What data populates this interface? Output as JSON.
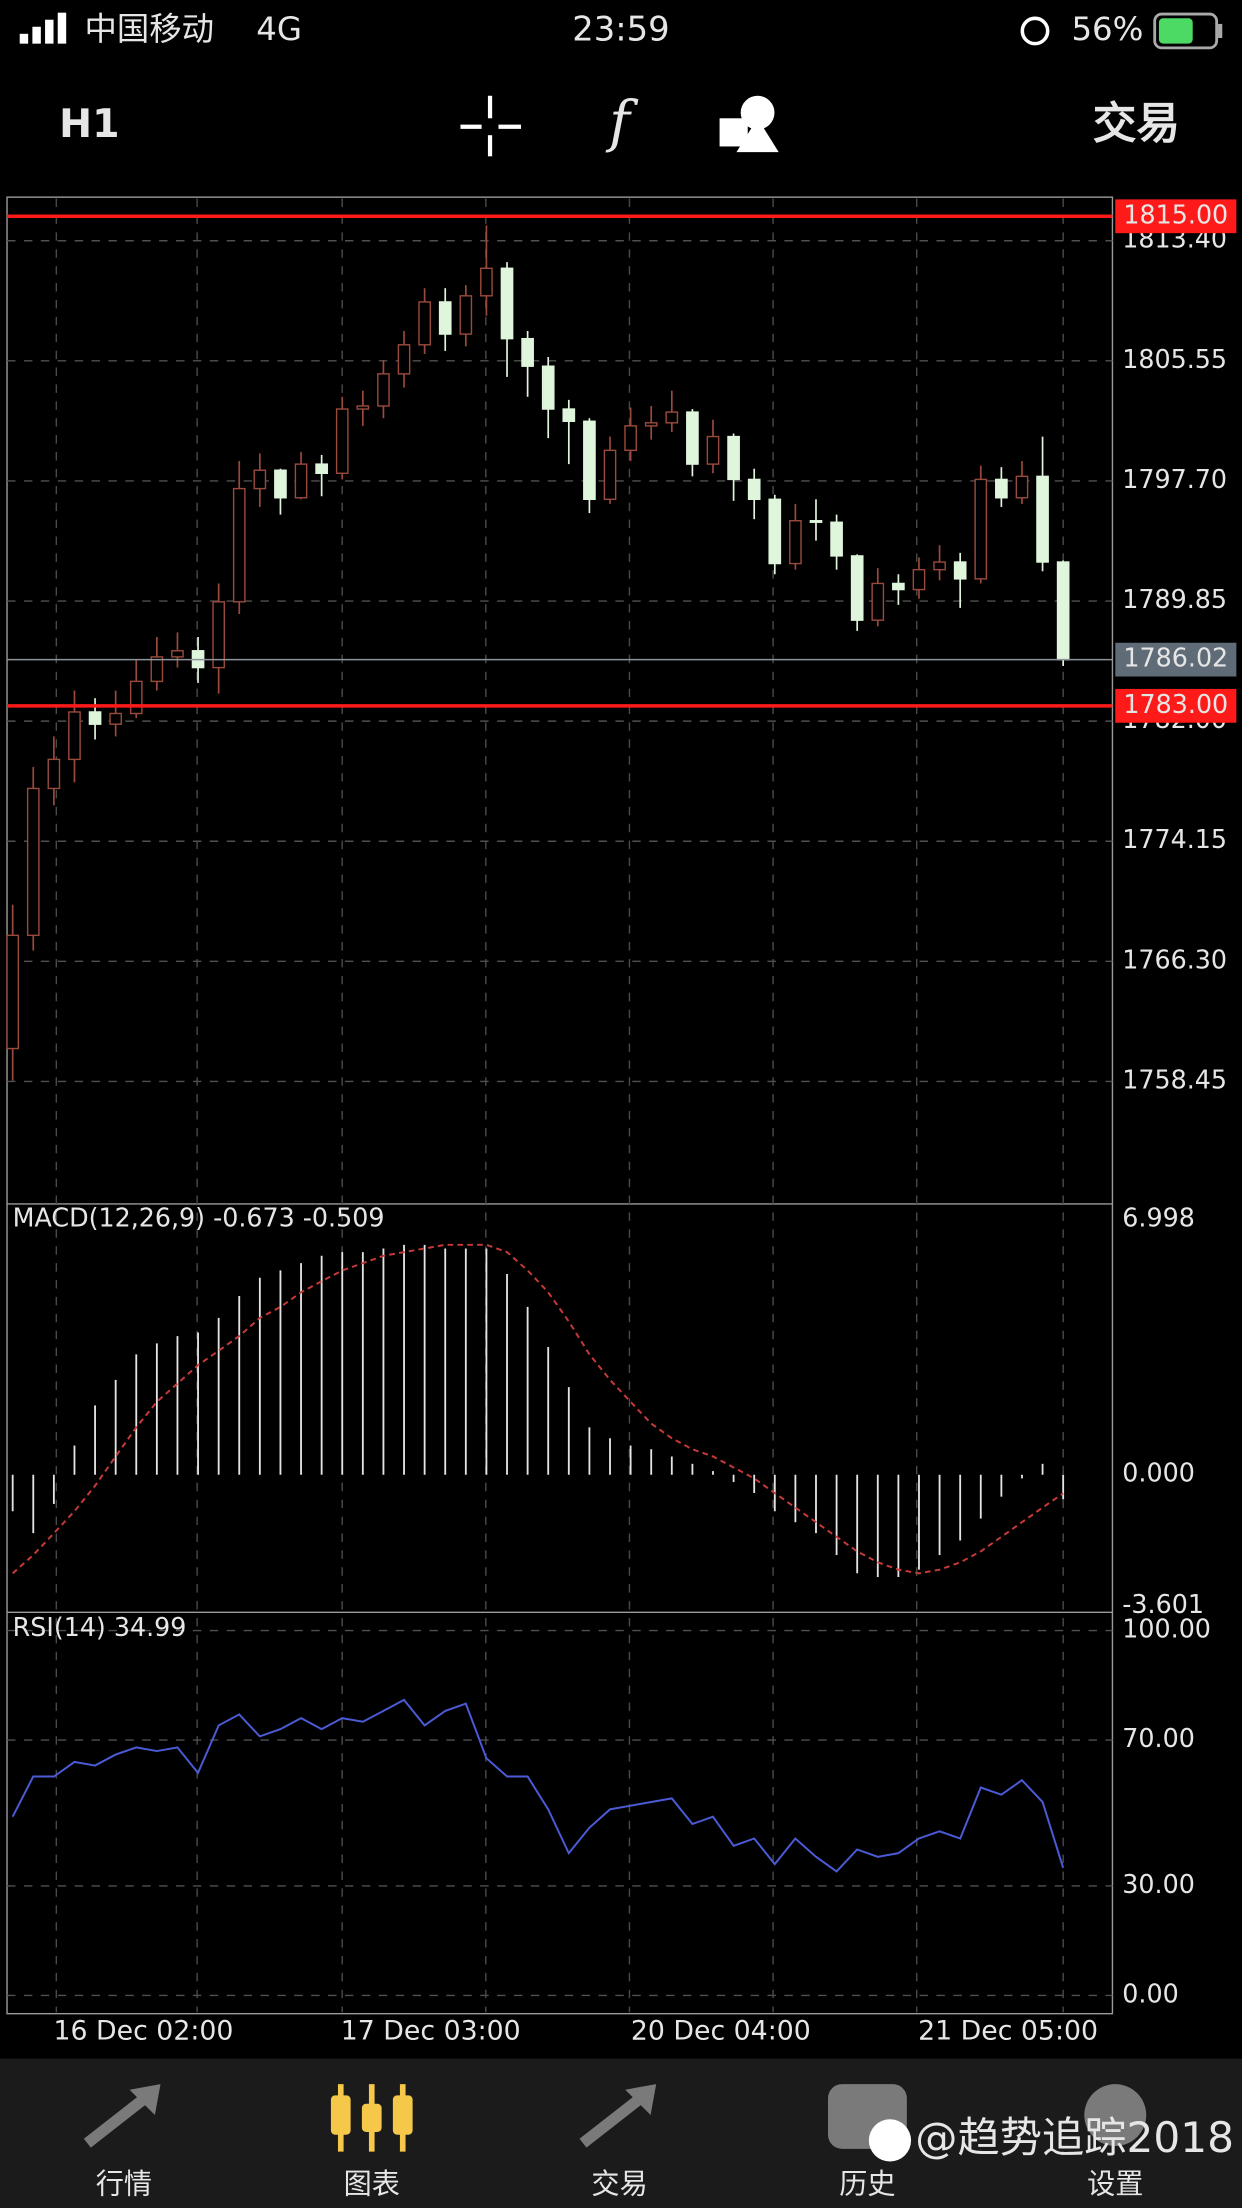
{
  "status_bar": {
    "carrier": "中国移动",
    "network": "4G",
    "time": "23:59",
    "battery": "56%"
  },
  "toolbar": {
    "timeframe": "H1",
    "trade": "交易"
  },
  "chart_data": [
    {
      "type": "candlestick",
      "up_color": "#9a4a3c",
      "down_color": "#dff5dc",
      "grid": true,
      "open": [
        1760.6,
        1768,
        1777.6,
        1779.5,
        1782.6,
        1781.8,
        1782.5,
        1784.6,
        1786.2,
        1786.6,
        1785.5,
        1789.8,
        1797.2,
        1798.4,
        1796.6,
        1798.8,
        1798.2,
        1802.4,
        1802.6,
        1804.7,
        1806.6,
        1809.4,
        1807.3,
        1809.8,
        1811.6,
        1807,
        1805.2,
        1802.4,
        1801.6,
        1796.5,
        1799.7,
        1801.3,
        1801.5,
        1802.2,
        1798.8,
        1800.6,
        1797.8,
        1796.5,
        1792.3,
        1795.1,
        1795,
        1792.8,
        1788.6,
        1791,
        1790.6,
        1791.9,
        1792.4,
        1791.3,
        1797.8,
        1796.6,
        1798,
        1792.4
      ],
      "high": [
        1770,
        1779,
        1781,
        1784,
        1783.5,
        1784,
        1786,
        1787.5,
        1787.8,
        1787.5,
        1791,
        1799,
        1799.5,
        1798.5,
        1799.6,
        1799.4,
        1803.2,
        1803.6,
        1805.6,
        1807.5,
        1810.3,
        1810.3,
        1810.5,
        1814.4,
        1812,
        1807.5,
        1805.8,
        1803,
        1801.8,
        1800.6,
        1802.5,
        1802.6,
        1803.6,
        1802.4,
        1801.7,
        1800.8,
        1798.5,
        1796.8,
        1796.2,
        1796.5,
        1795.5,
        1792.9,
        1792,
        1791.6,
        1792.7,
        1793.5,
        1793,
        1798.7,
        1798.6,
        1799,
        1800.6,
        1792.5
      ],
      "low": [
        1758.5,
        1767,
        1776.5,
        1778,
        1780.8,
        1781,
        1782.2,
        1784,
        1785.5,
        1784.5,
        1783.8,
        1789,
        1796,
        1795.5,
        1796.5,
        1796.7,
        1797.8,
        1801.3,
        1801.8,
        1803.8,
        1806,
        1806.2,
        1806.5,
        1808.5,
        1804.5,
        1803.2,
        1800.5,
        1798.8,
        1795.6,
        1796.2,
        1799,
        1800.4,
        1800.9,
        1798,
        1798.2,
        1796.4,
        1795.2,
        1791.6,
        1791.9,
        1793.8,
        1791.9,
        1787.9,
        1788.2,
        1789.6,
        1790,
        1791.2,
        1789.4,
        1791,
        1796,
        1796.2,
        1791.8,
        1785.6
      ],
      "close": [
        1768,
        1777.6,
        1779.5,
        1782.6,
        1781.8,
        1782.5,
        1784.6,
        1786.2,
        1786.6,
        1785.5,
        1789.8,
        1797.2,
        1798.4,
        1796.6,
        1798.8,
        1798.2,
        1802.4,
        1802.6,
        1804.7,
        1806.6,
        1809.4,
        1807.3,
        1809.8,
        1811.6,
        1807,
        1805.2,
        1802.4,
        1801.6,
        1796.5,
        1799.7,
        1801.3,
        1801.5,
        1802.2,
        1798.8,
        1800.6,
        1797.8,
        1796.5,
        1792.3,
        1795.1,
        1795,
        1792.8,
        1788.6,
        1791,
        1790.6,
        1791.9,
        1792.4,
        1791.3,
        1797.8,
        1796.6,
        1798,
        1792.4,
        1786.02
      ],
      "ylim": [
        1750.44,
        1816.25
      ],
      "yticks": [
        {
          "value": 1813.4,
          "label": "1813.40"
        },
        {
          "value": 1805.55,
          "label": "1805.55"
        },
        {
          "value": 1797.7,
          "label": "1797.70"
        },
        {
          "value": 1789.85,
          "label": "1789.85"
        },
        {
          "value": 1782,
          "label": "1782.00"
        },
        {
          "value": 1774.15,
          "label": "1774.15"
        },
        {
          "value": 1766.3,
          "label": "1766.30"
        },
        {
          "value": 1758.45,
          "label": "1758.45"
        }
      ],
      "levels": [
        {
          "value": 1815,
          "label": "1815.00",
          "color": "#ff1a1a"
        },
        {
          "value": 1783,
          "label": "1783.00",
          "color": "#ff1a1a"
        }
      ],
      "current": {
        "value": 1786.02,
        "label": "1786.02",
        "color": "#5f6b76"
      }
    },
    {
      "type": "macd",
      "title": "MACD(12,26,9) -0.673 -0.509",
      "histogram_color": "#e4e4e4",
      "signal_color": "#c83a3a",
      "histogram": [
        -1,
        -1.6,
        -0.8,
        0.8,
        1.9,
        2.6,
        3.3,
        3.6,
        3.8,
        3.9,
        4.3,
        4.9,
        5.4,
        5.6,
        5.8,
        6,
        6.1,
        6.1,
        6.2,
        6.3,
        6.3,
        6.2,
        6.2,
        6.2,
        5.5,
        4.6,
        3.5,
        2.4,
        1.3,
        1,
        0.8,
        0.7,
        0.5,
        0.3,
        0.1,
        -0.2,
        -0.5,
        -1,
        -1.3,
        -1.6,
        -2.2,
        -2.7,
        -2.8,
        -2.8,
        -2.6,
        -2.2,
        -1.8,
        -1.2,
        -0.6,
        -0.1,
        0.3,
        -0.673
      ],
      "signal": [
        -2.7,
        -2.2,
        -1.6,
        -1,
        -0.3,
        0.5,
        1.3,
        2,
        2.5,
        3,
        3.4,
        3.8,
        4.3,
        4.6,
        5,
        5.3,
        5.6,
        5.8,
        6,
        6.1,
        6.2,
        6.3,
        6.3,
        6.3,
        6.1,
        5.6,
        5,
        4.2,
        3.3,
        2.6,
        2,
        1.4,
        1,
        0.7,
        0.5,
        0.2,
        -0.1,
        -0.5,
        -0.9,
        -1.3,
        -1.7,
        -2.1,
        -2.4,
        -2.6,
        -2.7,
        -2.6,
        -2.4,
        -2.1,
        -1.7,
        -1.3,
        -0.9,
        -0.509
      ],
      "ylim": [
        -3.77,
        7.42
      ],
      "yticks": [
        6.998,
        {
          "value": 0,
          "label": "0.000"
        },
        -3.601
      ]
    },
    {
      "type": "line",
      "title": "RSI(14) 34.99",
      "color": "#4b5bd6",
      "grid": true,
      "values": [
        49,
        60,
        60,
        64,
        63,
        66,
        68,
        67,
        68,
        61,
        74,
        77,
        71,
        73,
        76,
        73,
        76,
        75,
        78,
        81,
        74,
        78,
        80,
        65,
        60,
        60,
        51,
        39,
        46,
        51,
        52,
        53,
        54,
        47,
        49,
        41,
        43,
        36,
        43,
        38,
        34,
        40,
        38,
        39,
        43,
        45,
        43,
        57,
        55,
        59,
        53,
        34.99
      ],
      "ylim": [
        -5,
        105
      ],
      "yticks": [
        {
          "value": 100,
          "label": "100.00"
        },
        {
          "value": 70,
          "label": "70.00"
        },
        {
          "value": 30,
          "label": "30.00"
        },
        {
          "value": 0,
          "label": "0.00"
        }
      ],
      "x_labels": [
        "16 Dec 02:00",
        "17 Dec 03:00",
        "20 Dec 04:00",
        "21 Dec 05:00"
      ]
    }
  ],
  "tab_bar": {
    "tabs": [
      "行情",
      "图表",
      "交易",
      "历史",
      "设置"
    ],
    "active": 1,
    "active_color": "#f5c84a"
  },
  "watermark": "@趋势追踪2018"
}
